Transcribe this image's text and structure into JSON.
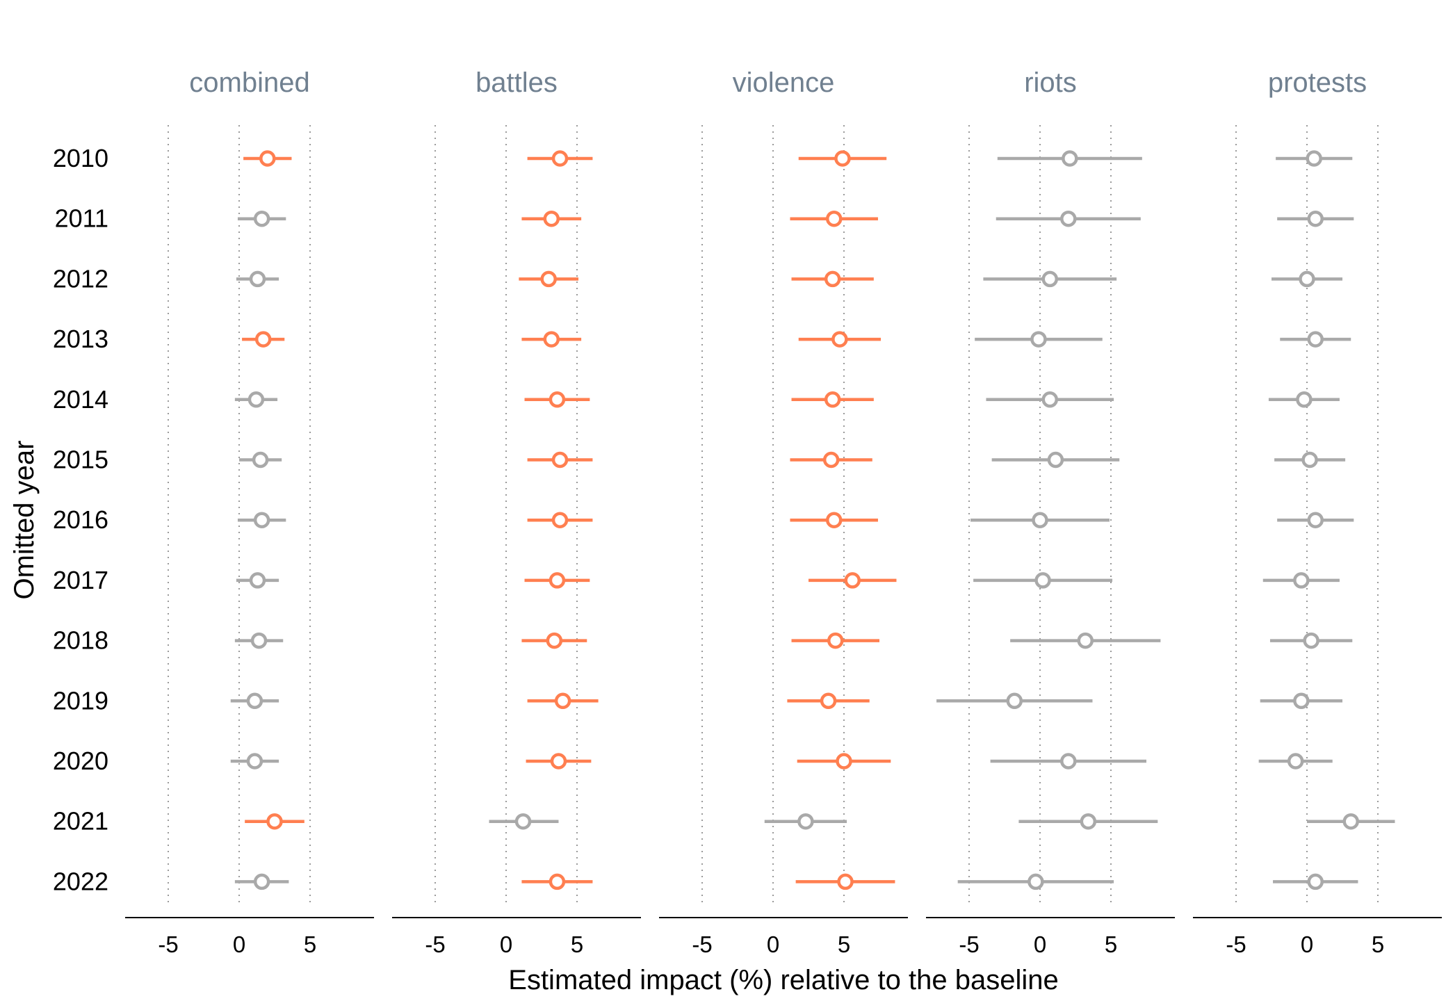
{
  "chart_data": {
    "type": "scatter",
    "subtype": "facetted point-range (coefficient plot)",
    "xlabel": "Estimated impact (%) relative to the baseline",
    "ylabel": "Omitted year",
    "xticks": [
      -5,
      0,
      5
    ],
    "xlim": [
      -8,
      9.5
    ],
    "grid": "dotted vertical lines at x = -5, 0, 5",
    "colors": {
      "significant": "#FF7F50",
      "not_significant": "#A9A9A9",
      "facet_title": "#708090"
    },
    "categories": [
      "2010",
      "2011",
      "2012",
      "2013",
      "2014",
      "2015",
      "2016",
      "2017",
      "2018",
      "2019",
      "2020",
      "2021",
      "2022"
    ],
    "facets": [
      {
        "name": "combined",
        "series": [
          {
            "year": "2010",
            "est": 2.0,
            "lo": 0.3,
            "hi": 3.7,
            "sig": true
          },
          {
            "year": "2011",
            "est": 1.6,
            "lo": -0.1,
            "hi": 3.3,
            "sig": false
          },
          {
            "year": "2012",
            "est": 1.3,
            "lo": -0.2,
            "hi": 2.8,
            "sig": false
          },
          {
            "year": "2013",
            "est": 1.7,
            "lo": 0.2,
            "hi": 3.2,
            "sig": true
          },
          {
            "year": "2014",
            "est": 1.2,
            "lo": -0.3,
            "hi": 2.7,
            "sig": false
          },
          {
            "year": "2015",
            "est": 1.5,
            "lo": 0.0,
            "hi": 3.0,
            "sig": false
          },
          {
            "year": "2016",
            "est": 1.6,
            "lo": -0.1,
            "hi": 3.3,
            "sig": false
          },
          {
            "year": "2017",
            "est": 1.3,
            "lo": -0.2,
            "hi": 2.8,
            "sig": false
          },
          {
            "year": "2018",
            "est": 1.4,
            "lo": -0.3,
            "hi": 3.1,
            "sig": false
          },
          {
            "year": "2019",
            "est": 1.1,
            "lo": -0.6,
            "hi": 2.8,
            "sig": false
          },
          {
            "year": "2020",
            "est": 1.1,
            "lo": -0.6,
            "hi": 2.8,
            "sig": false
          },
          {
            "year": "2021",
            "est": 2.5,
            "lo": 0.4,
            "hi": 4.6,
            "sig": true
          },
          {
            "year": "2022",
            "est": 1.6,
            "lo": -0.3,
            "hi": 3.5,
            "sig": false
          }
        ]
      },
      {
        "name": "battles",
        "series": [
          {
            "year": "2010",
            "est": 3.8,
            "lo": 1.5,
            "hi": 6.1,
            "sig": true
          },
          {
            "year": "2011",
            "est": 3.2,
            "lo": 1.1,
            "hi": 5.3,
            "sig": true
          },
          {
            "year": "2012",
            "est": 3.0,
            "lo": 0.9,
            "hi": 5.1,
            "sig": true
          },
          {
            "year": "2013",
            "est": 3.2,
            "lo": 1.1,
            "hi": 5.3,
            "sig": true
          },
          {
            "year": "2014",
            "est": 3.6,
            "lo": 1.3,
            "hi": 5.9,
            "sig": true
          },
          {
            "year": "2015",
            "est": 3.8,
            "lo": 1.5,
            "hi": 6.1,
            "sig": true
          },
          {
            "year": "2016",
            "est": 3.8,
            "lo": 1.5,
            "hi": 6.1,
            "sig": true
          },
          {
            "year": "2017",
            "est": 3.6,
            "lo": 1.3,
            "hi": 5.9,
            "sig": true
          },
          {
            "year": "2018",
            "est": 3.4,
            "lo": 1.1,
            "hi": 5.7,
            "sig": true
          },
          {
            "year": "2019",
            "est": 4.0,
            "lo": 1.5,
            "hi": 6.5,
            "sig": true
          },
          {
            "year": "2020",
            "est": 3.7,
            "lo": 1.4,
            "hi": 6.0,
            "sig": true
          },
          {
            "year": "2021",
            "est": 1.2,
            "lo": -1.2,
            "hi": 3.7,
            "sig": false
          },
          {
            "year": "2022",
            "est": 3.6,
            "lo": 1.1,
            "hi": 6.1,
            "sig": true
          }
        ]
      },
      {
        "name": "violence",
        "series": [
          {
            "year": "2010",
            "est": 4.9,
            "lo": 1.8,
            "hi": 8.0,
            "sig": true
          },
          {
            "year": "2011",
            "est": 4.3,
            "lo": 1.2,
            "hi": 7.4,
            "sig": true
          },
          {
            "year": "2012",
            "est": 4.2,
            "lo": 1.3,
            "hi": 7.1,
            "sig": true
          },
          {
            "year": "2013",
            "est": 4.7,
            "lo": 1.8,
            "hi": 7.6,
            "sig": true
          },
          {
            "year": "2014",
            "est": 4.2,
            "lo": 1.3,
            "hi": 7.1,
            "sig": true
          },
          {
            "year": "2015",
            "est": 4.1,
            "lo": 1.2,
            "hi": 7.0,
            "sig": true
          },
          {
            "year": "2016",
            "est": 4.3,
            "lo": 1.2,
            "hi": 7.4,
            "sig": true
          },
          {
            "year": "2017",
            "est": 5.6,
            "lo": 2.5,
            "hi": 8.7,
            "sig": true
          },
          {
            "year": "2018",
            "est": 4.4,
            "lo": 1.3,
            "hi": 7.5,
            "sig": true
          },
          {
            "year": "2019",
            "est": 3.9,
            "lo": 1.0,
            "hi": 6.8,
            "sig": true
          },
          {
            "year": "2020",
            "est": 5.0,
            "lo": 1.7,
            "hi": 8.3,
            "sig": true
          },
          {
            "year": "2021",
            "est": 2.3,
            "lo": -0.6,
            "hi": 5.2,
            "sig": false
          },
          {
            "year": "2022",
            "est": 5.1,
            "lo": 1.6,
            "hi": 8.6,
            "sig": true
          }
        ]
      },
      {
        "name": "riots",
        "series": [
          {
            "year": "2010",
            "est": 2.1,
            "lo": -3.0,
            "hi": 7.2,
            "sig": false
          },
          {
            "year": "2011",
            "est": 2.0,
            "lo": -3.1,
            "hi": 7.1,
            "sig": false
          },
          {
            "year": "2012",
            "est": 0.7,
            "lo": -4.0,
            "hi": 5.4,
            "sig": false
          },
          {
            "year": "2013",
            "est": -0.1,
            "lo": -4.6,
            "hi": 4.4,
            "sig": false
          },
          {
            "year": "2014",
            "est": 0.7,
            "lo": -3.8,
            "hi": 5.2,
            "sig": false
          },
          {
            "year": "2015",
            "est": 1.1,
            "lo": -3.4,
            "hi": 5.6,
            "sig": false
          },
          {
            "year": "2016",
            "est": 0.0,
            "lo": -4.9,
            "hi": 4.9,
            "sig": false
          },
          {
            "year": "2017",
            "est": 0.2,
            "lo": -4.7,
            "hi": 5.1,
            "sig": false
          },
          {
            "year": "2018",
            "est": 3.2,
            "lo": -2.1,
            "hi": 8.5,
            "sig": false
          },
          {
            "year": "2019",
            "est": -1.8,
            "lo": -7.3,
            "hi": 3.7,
            "sig": false
          },
          {
            "year": "2020",
            "est": 2.0,
            "lo": -3.5,
            "hi": 7.5,
            "sig": false
          },
          {
            "year": "2021",
            "est": 3.4,
            "lo": -1.5,
            "hi": 8.3,
            "sig": false
          },
          {
            "year": "2022",
            "est": -0.3,
            "lo": -5.8,
            "hi": 5.2,
            "sig": false
          }
        ]
      },
      {
        "name": "protests",
        "series": [
          {
            "year": "2010",
            "est": 0.5,
            "lo": -2.2,
            "hi": 3.2,
            "sig": false
          },
          {
            "year": "2011",
            "est": 0.6,
            "lo": -2.1,
            "hi": 3.3,
            "sig": false
          },
          {
            "year": "2012",
            "est": 0.0,
            "lo": -2.5,
            "hi": 2.5,
            "sig": false
          },
          {
            "year": "2013",
            "est": 0.6,
            "lo": -1.9,
            "hi": 3.1,
            "sig": false
          },
          {
            "year": "2014",
            "est": -0.2,
            "lo": -2.7,
            "hi": 2.3,
            "sig": false
          },
          {
            "year": "2015",
            "est": 0.2,
            "lo": -2.3,
            "hi": 2.7,
            "sig": false
          },
          {
            "year": "2016",
            "est": 0.6,
            "lo": -2.1,
            "hi": 3.3,
            "sig": false
          },
          {
            "year": "2017",
            "est": -0.4,
            "lo": -3.1,
            "hi": 2.3,
            "sig": false
          },
          {
            "year": "2018",
            "est": 0.3,
            "lo": -2.6,
            "hi": 3.2,
            "sig": false
          },
          {
            "year": "2019",
            "est": -0.4,
            "lo": -3.3,
            "hi": 2.5,
            "sig": false
          },
          {
            "year": "2020",
            "est": -0.8,
            "lo": -3.4,
            "hi": 1.8,
            "sig": false
          },
          {
            "year": "2021",
            "est": 3.1,
            "lo": 0.0,
            "hi": 6.2,
            "sig": false
          },
          {
            "year": "2022",
            "est": 0.6,
            "lo": -2.4,
            "hi": 3.6,
            "sig": false
          }
        ]
      }
    ]
  }
}
